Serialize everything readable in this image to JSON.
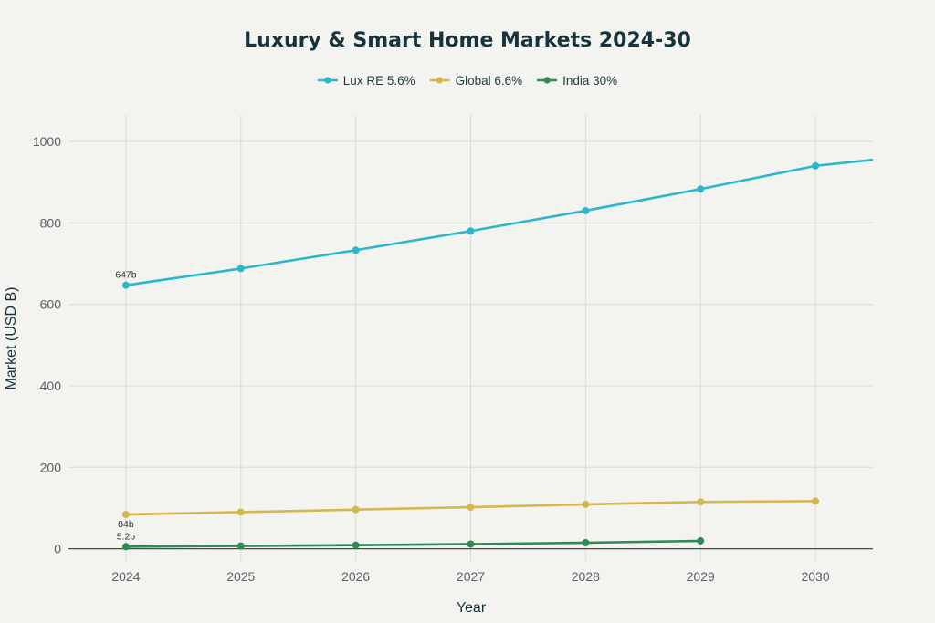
{
  "chart_data": {
    "type": "line",
    "title": "Luxury & Smart Home Markets 2024-30",
    "xlabel": "Year",
    "ylabel": "Market (USD B)",
    "x": [
      2024,
      2025,
      2026,
      2027,
      2028,
      2029,
      2030
    ],
    "xlim": [
      2023.5,
      2030.5
    ],
    "ylim": [
      -30,
      1065
    ],
    "yticks": [
      0,
      200,
      400,
      600,
      800,
      1000
    ],
    "legend_position": "top-center",
    "series": [
      {
        "name": "Lux RE 5.6%",
        "color": "#2bb7c9",
        "values": [
          647,
          688,
          733,
          780,
          830,
          883,
          940
        ],
        "extend_to": [
          2030.5,
          955
        ]
      },
      {
        "name": "Global 6.6%",
        "color": "#d4b84f",
        "values": [
          84,
          90,
          96,
          102,
          109,
          115,
          117
        ]
      },
      {
        "name": "India 30%",
        "color": "#2e8a57",
        "values": [
          5.2,
          6.8,
          8.8,
          11.4,
          14.8,
          19.3,
          null
        ]
      }
    ],
    "annotations": [
      {
        "text": "647b",
        "x": 2024,
        "y": 647,
        "anchor": "above"
      },
      {
        "text": "84b",
        "x": 2024,
        "y": 84,
        "anchor": "below"
      },
      {
        "text": "5.2b",
        "x": 2024,
        "y": 5.2,
        "anchor": "above"
      }
    ]
  }
}
